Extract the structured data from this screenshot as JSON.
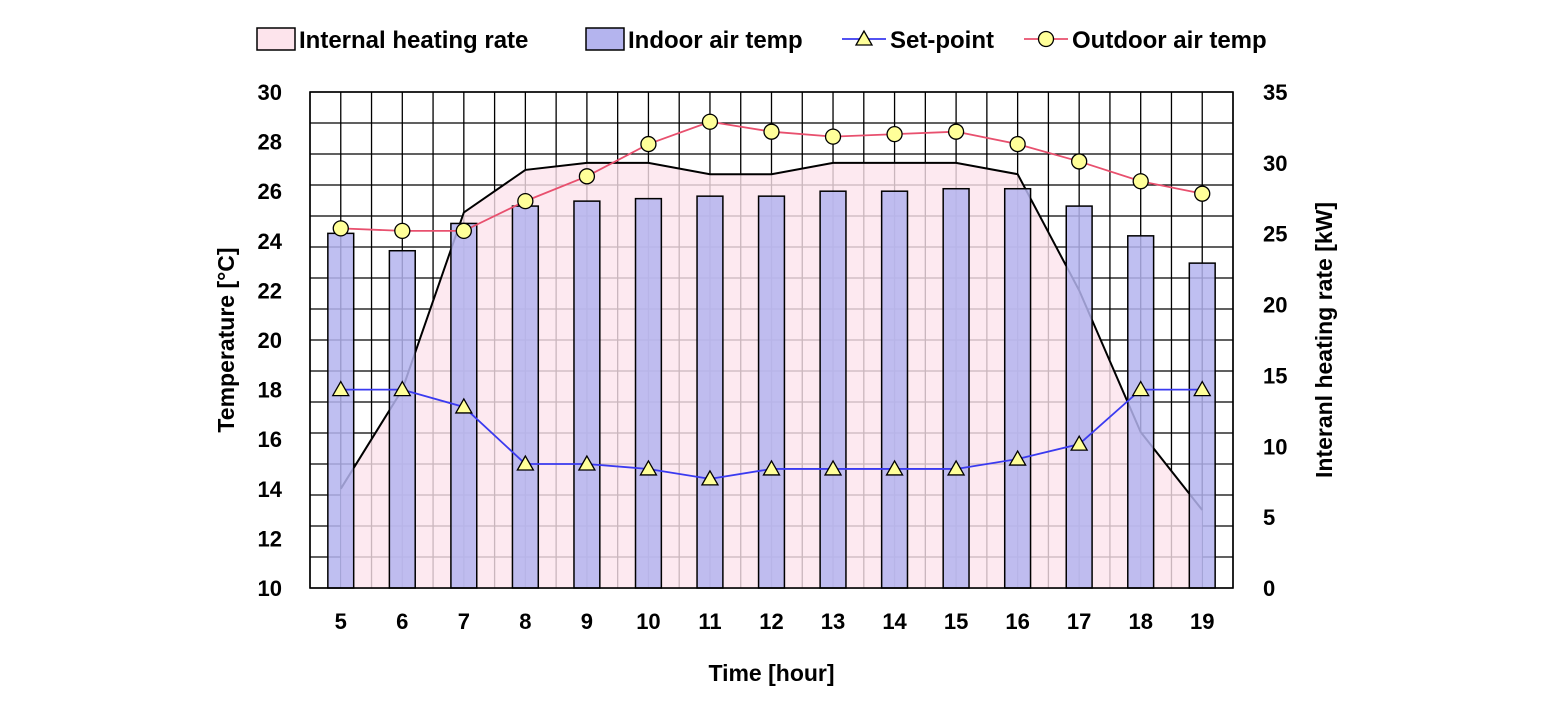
{
  "chart_data": {
    "type": "bar",
    "categories": [
      "5",
      "6",
      "7",
      "8",
      "9",
      "10",
      "11",
      "12",
      "13",
      "14",
      "15",
      "16",
      "17",
      "18",
      "19"
    ],
    "xlabel": "Time [hour]",
    "ylabel": "Temperature [°C]",
    "y2label": "Interanl heating rate [kW]",
    "ylim": [
      10,
      30
    ],
    "y2lim": [
      0,
      35
    ],
    "y_ticks": [
      "10",
      "12",
      "14",
      "16",
      "18",
      "20",
      "22",
      "24",
      "26",
      "28",
      "30"
    ],
    "y2_ticks": [
      "0",
      "5",
      "10",
      "15",
      "20",
      "25",
      "30",
      "35"
    ],
    "grid": true,
    "legend_position": "top",
    "series": [
      {
        "name": "Internal heating rate",
        "type": "area",
        "axis": "right",
        "color": "#fde4ec",
        "line_color": "#000000",
        "values": [
          7,
          14,
          26.5,
          29.5,
          30,
          30,
          29.2,
          29.2,
          30,
          30,
          30,
          29.2,
          21,
          11,
          5.5
        ]
      },
      {
        "name": "Indoor air temp",
        "type": "bar",
        "axis": "left",
        "color": "#b4b4ee",
        "values": [
          24.3,
          23.6,
          24.7,
          25.4,
          25.6,
          25.7,
          25.8,
          25.8,
          26.0,
          26.0,
          26.1,
          26.1,
          25.4,
          24.2,
          23.1
        ]
      },
      {
        "name": "Set-point",
        "type": "line",
        "axis": "left",
        "color": "#3a3af0",
        "marker": "triangle",
        "values": [
          18,
          18,
          17.3,
          15,
          15,
          14.8,
          14.4,
          14.8,
          14.8,
          14.8,
          14.8,
          15.2,
          15.8,
          18,
          18
        ]
      },
      {
        "name": "Outdoor air temp",
        "type": "line",
        "axis": "left",
        "color": "#e8506e",
        "marker": "circle",
        "values": [
          24.5,
          24.4,
          24.4,
          25.6,
          26.6,
          27.9,
          28.8,
          28.4,
          28.2,
          28.3,
          28.4,
          27.9,
          27.2,
          26.4,
          25.9
        ]
      }
    ]
  },
  "styles": {
    "marker_fill": "#ffff99",
    "grid_color": "#000000",
    "bar_stroke": "#000000"
  }
}
